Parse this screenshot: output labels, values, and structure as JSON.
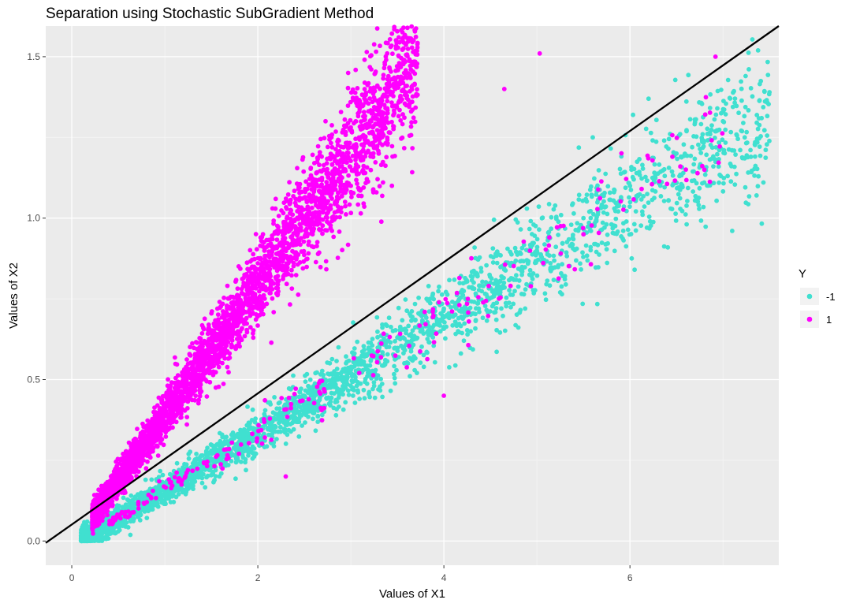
{
  "chart_data": {
    "type": "scatter",
    "title": "Separation using Stochastic SubGradient Method",
    "xlabel": "Values of X1",
    "ylabel": "Values of X2",
    "xlim": [
      -0.28,
      7.6
    ],
    "ylim": [
      -0.075,
      1.595
    ],
    "x_ticks": [
      0,
      2,
      4,
      6
    ],
    "x_tick_labels": [
      "0",
      "2",
      "4",
      "6"
    ],
    "y_ticks": [
      0.0,
      0.5,
      1.0,
      1.5
    ],
    "y_tick_labels": [
      "0.0",
      "0.5",
      "1.0",
      "1.5"
    ],
    "grid": true,
    "legend": {
      "title": "Y",
      "placement": "right",
      "entries": [
        {
          "label": "-1",
          "color": "#40E0D0"
        },
        {
          "label": "1",
          "color": "#FF00FF"
        }
      ]
    },
    "series": [
      {
        "name": "-1",
        "color": "#40E0D0",
        "cluster": {
          "x_range": [
            0.1,
            7.5
          ],
          "slope_range": [
            0.14,
            0.22
          ],
          "n": 3200
        },
        "sample_points": [
          [
            0.15,
            0.01
          ],
          [
            0.5,
            0.06
          ],
          [
            1.0,
            0.17
          ],
          [
            1.5,
            0.28
          ],
          [
            2.0,
            0.36
          ],
          [
            2.5,
            0.45
          ],
          [
            3.0,
            0.53
          ],
          [
            3.5,
            0.63
          ],
          [
            4.0,
            0.72
          ],
          [
            4.5,
            0.8
          ],
          [
            5.0,
            0.9
          ],
          [
            5.5,
            1.0
          ],
          [
            6.0,
            1.1
          ],
          [
            6.5,
            1.2
          ],
          [
            7.0,
            1.3
          ],
          [
            7.5,
            1.39
          ],
          [
            7.3,
            1.19
          ],
          [
            6.05,
            0.84
          ],
          [
            5.6,
            1.25
          ],
          [
            6.2,
            1.37
          ]
        ]
      },
      {
        "name": "1",
        "color": "#FF00FF",
        "cluster": {
          "x_range": [
            0.2,
            3.8
          ],
          "slope_range": [
            0.3,
            0.5
          ],
          "n": 3600
        },
        "sample_points": [
          [
            0.25,
            0.08
          ],
          [
            0.5,
            0.2
          ],
          [
            0.8,
            0.35
          ],
          [
            1.0,
            0.45
          ],
          [
            1.3,
            0.55
          ],
          [
            1.6,
            0.66
          ],
          [
            1.9,
            0.75
          ],
          [
            2.2,
            0.86
          ],
          [
            2.6,
            0.98
          ],
          [
            3.0,
            1.1
          ],
          [
            3.3,
            1.2
          ],
          [
            3.7,
            1.38
          ],
          [
            4.65,
            1.4
          ],
          [
            5.03,
            1.51
          ],
          [
            6.92,
            1.5
          ],
          [
            3.2,
            1.29
          ],
          [
            2.3,
            0.2
          ],
          [
            4.0,
            0.45
          ],
          [
            5.5,
            0.95
          ],
          [
            6.8,
            1.15
          ]
        ]
      }
    ],
    "separator": {
      "color": "#000000",
      "points": [
        [
          -0.28,
          -0.006
        ],
        [
          7.6,
          1.595
        ]
      ]
    }
  }
}
